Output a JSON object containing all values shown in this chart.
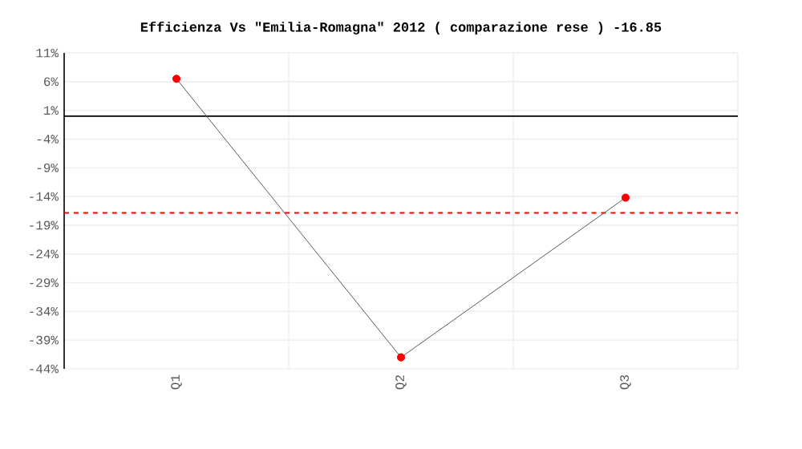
{
  "chart_data": {
    "type": "line",
    "title": "Efficienza Vs \"Emilia-Romagna\" 2012 ( comparazione rese ) -16.85",
    "categories": [
      "Q1",
      "Q2",
      "Q3"
    ],
    "series": [
      {
        "color": "#ff0000",
        "values": [
          6.5,
          -42.0,
          -14.2
        ]
      }
    ],
    "ylim": [
      -44,
      11
    ],
    "yticks": [
      {
        "value": 11,
        "label": "11%"
      },
      {
        "value": 6,
        "label": "6%"
      },
      {
        "value": 1,
        "label": "1%"
      },
      {
        "value": -4,
        "label": "-4%"
      },
      {
        "value": -9,
        "label": "-9%"
      },
      {
        "value": -14,
        "label": "-14%"
      },
      {
        "value": -19,
        "label": "-19%"
      },
      {
        "value": -24,
        "label": "-24%"
      },
      {
        "value": -29,
        "label": "-29%"
      },
      {
        "value": -34,
        "label": "-34%"
      },
      {
        "value": -39,
        "label": "-39%"
      },
      {
        "value": -44,
        "label": "-44%"
      }
    ],
    "ref_lines": [
      {
        "axis": "y",
        "value": 0,
        "color": "#000000",
        "line_style": "solid"
      },
      {
        "axis": "y",
        "value": -16.85,
        "color": "#ff0000",
        "line_style": "dashed"
      }
    ],
    "grid": true,
    "marker": "circle",
    "line_style": "solid"
  }
}
